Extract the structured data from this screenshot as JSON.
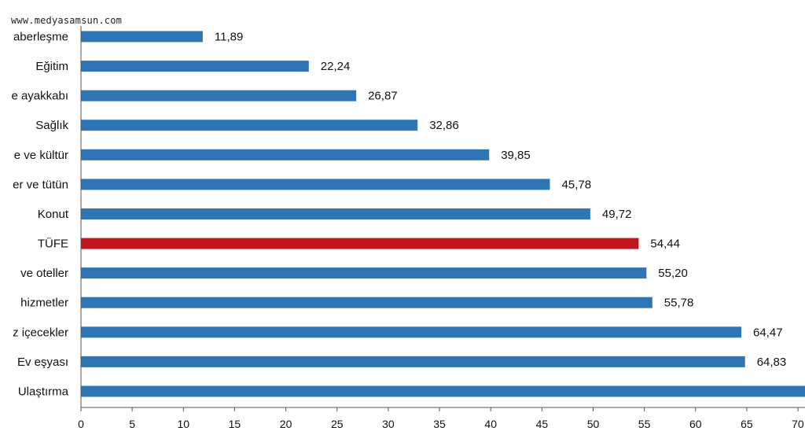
{
  "watermark": "www.medyasamsun.com",
  "colors": {
    "bar": "#2e75b6",
    "highlight": "#c0141e",
    "axis": "#555555"
  },
  "chart_data": {
    "type": "bar",
    "orientation": "horizontal",
    "title": "",
    "xlabel": "",
    "ylabel": "",
    "xlim": [
      0,
      70
    ],
    "x_ticks": [
      0,
      5,
      10,
      15,
      20,
      25,
      30,
      35,
      40,
      45,
      50,
      55,
      60,
      65,
      70
    ],
    "grid": false,
    "categories": [
      "aberleşme",
      "Eğitim",
      "e ayakkabı",
      "Sağlık",
      "e ve kültür",
      "er ve tütün",
      "Konut",
      "TÜFE",
      "ve oteller",
      "hizmetler",
      "z içecekler",
      "Ev eşyası",
      "Ulaştırma"
    ],
    "values": [
      11.89,
      22.24,
      26.87,
      32.86,
      39.85,
      45.78,
      49.72,
      54.44,
      55.2,
      55.78,
      64.47,
      64.83,
      null
    ],
    "value_labels": [
      "11,89",
      "22,24",
      "26,87",
      "32,86",
      "39,85",
      "45,78",
      "49,72",
      "54,44",
      "55,20",
      "55,78",
      "64,47",
      "64,83",
      ""
    ],
    "highlight_category": "TÜFE"
  }
}
